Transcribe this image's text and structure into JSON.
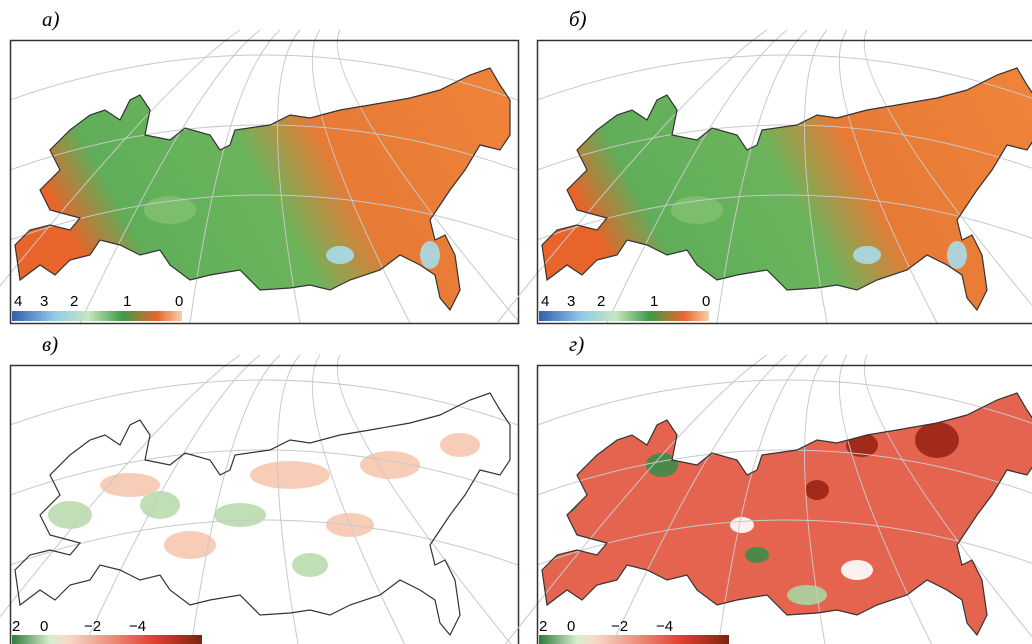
{
  "panels": [
    {
      "label": "а)",
      "colorbar_ticks": [
        "4",
        "3",
        "2",
        "1",
        "0"
      ]
    },
    {
      "label": "б)",
      "colorbar_ticks": [
        "4",
        "3",
        "2",
        "1",
        "0"
      ]
    },
    {
      "label": "в)",
      "colorbar_ticks": [
        "2",
        "0",
        "−2",
        "−4"
      ]
    },
    {
      "label": "г)",
      "colorbar_ticks": [
        "2",
        "0",
        "−2",
        "−4"
      ]
    }
  ]
}
